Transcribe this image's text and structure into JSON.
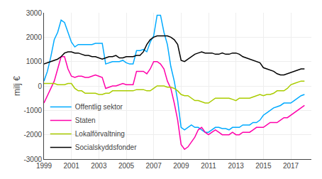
{
  "chart_data": {
    "type": "line",
    "ylabel": "milj €",
    "x": [
      1999.0,
      1999.25,
      1999.5,
      1999.75,
      2000.0,
      2000.25,
      2000.5,
      2000.75,
      2001.0,
      2001.25,
      2001.5,
      2001.75,
      2002.0,
      2002.25,
      2002.5,
      2002.75,
      2003.0,
      2003.25,
      2003.5,
      2003.75,
      2004.0,
      2004.25,
      2004.5,
      2004.75,
      2005.0,
      2005.25,
      2005.5,
      2005.75,
      2006.0,
      2006.25,
      2006.5,
      2006.75,
      2007.0,
      2007.25,
      2007.5,
      2007.75,
      2008.0,
      2008.25,
      2008.5,
      2008.75,
      2009.0,
      2009.25,
      2009.5,
      2009.75,
      2010.0,
      2010.25,
      2010.5,
      2010.75,
      2011.0,
      2011.25,
      2011.5,
      2011.75,
      2012.0,
      2012.25,
      2012.5,
      2012.75,
      2013.0,
      2013.25,
      2013.5,
      2013.75,
      2014.0,
      2014.25,
      2014.5,
      2014.75,
      2015.0,
      2015.25,
      2015.5,
      2015.75,
      2016.0,
      2016.25,
      2016.5,
      2016.75,
      2017.0,
      2017.25,
      2017.5,
      2017.75,
      2018.0
    ],
    "series": [
      {
        "name": "Offentlig sektor",
        "color": "#00aaff",
        "values": [
          200,
          600,
          1200,
          1900,
          2200,
          2700,
          2600,
          2200,
          1800,
          1600,
          1700,
          1700,
          1700,
          1700,
          1700,
          1750,
          1750,
          1750,
          900,
          950,
          1000,
          1000,
          1000,
          1050,
          950,
          900,
          900,
          1450,
          1450,
          1500,
          1400,
          1800,
          2050,
          2900,
          2900,
          2200,
          1700,
          800,
          200,
          -600,
          -1700,
          -1800,
          -1700,
          -1600,
          -1700,
          -1700,
          -1800,
          -1900,
          -1900,
          -1800,
          -1700,
          -1700,
          -1750,
          -1750,
          -1800,
          -1700,
          -1700,
          -1700,
          -1600,
          -1600,
          -1600,
          -1500,
          -1500,
          -1400,
          -1200,
          -1100,
          -1000,
          -900,
          -850,
          -800,
          -700,
          -700,
          -700,
          -600,
          -500,
          -400,
          -350
        ]
      },
      {
        "name": "Staten",
        "color": "#ff00aa",
        "values": [
          -700,
          -400,
          -100,
          200,
          700,
          1200,
          1200,
          700,
          400,
          350,
          400,
          400,
          350,
          350,
          400,
          450,
          400,
          350,
          -100,
          -50,
          0,
          0,
          50,
          100,
          50,
          50,
          50,
          600,
          600,
          600,
          500,
          700,
          1000,
          1000,
          900,
          700,
          200,
          -100,
          -700,
          -1400,
          -2400,
          -2600,
          -2500,
          -2300,
          -2100,
          -1800,
          -1700,
          -1900,
          -2000,
          -1900,
          -1800,
          -1900,
          -2000,
          -2000,
          -2000,
          -1900,
          -2000,
          -2000,
          -1900,
          -1900,
          -1900,
          -1800,
          -1700,
          -1700,
          -1700,
          -1600,
          -1500,
          -1500,
          -1500,
          -1400,
          -1300,
          -1300,
          -1200,
          -1100,
          -1000,
          -900,
          -800
        ]
      },
      {
        "name": "Lokalförvaltning",
        "color": "#aacc00",
        "values": [
          100,
          100,
          100,
          100,
          50,
          50,
          50,
          100,
          100,
          -100,
          -200,
          -200,
          -300,
          -300,
          -300,
          -300,
          -350,
          -350,
          -300,
          -300,
          -200,
          -200,
          -200,
          -200,
          -200,
          -200,
          -200,
          -150,
          -150,
          -150,
          -200,
          -200,
          -100,
          0,
          0,
          0,
          -50,
          -50,
          -100,
          -200,
          -350,
          -400,
          -400,
          -500,
          -600,
          -600,
          -650,
          -700,
          -700,
          -600,
          -500,
          -500,
          -500,
          -500,
          -500,
          -550,
          -600,
          -500,
          -500,
          -500,
          -500,
          -450,
          -400,
          -350,
          -400,
          -350,
          -350,
          -300,
          -200,
          -200,
          -200,
          -100,
          50,
          100,
          150,
          200,
          200
        ]
      },
      {
        "name": "Socialskyddsfonder",
        "color": "#000000",
        "values": [
          900,
          950,
          1000,
          1050,
          1100,
          1200,
          1350,
          1400,
          1400,
          1350,
          1350,
          1300,
          1250,
          1250,
          1200,
          1200,
          1150,
          1100,
          1150,
          1200,
          1200,
          1250,
          1150,
          1150,
          1200,
          1200,
          1200,
          1250,
          1250,
          1400,
          1700,
          1900,
          2000,
          2050,
          2050,
          2050,
          2050,
          2000,
          1900,
          1700,
          1050,
          1000,
          1100,
          1200,
          1300,
          1350,
          1400,
          1350,
          1350,
          1350,
          1300,
          1300,
          1350,
          1300,
          1300,
          1350,
          1350,
          1300,
          1200,
          1150,
          1100,
          1050,
          1000,
          950,
          750,
          700,
          650,
          600,
          500,
          450,
          450,
          500,
          550,
          600,
          650,
          700,
          700
        ]
      }
    ],
    "xlim": [
      1999,
      2018.5
    ],
    "xticks": [
      1999,
      2001,
      2003,
      2005,
      2007,
      2009,
      2011,
      2013,
      2015,
      2017
    ],
    "ylim": [
      -3000,
      3000
    ],
    "yticks": [
      -3000,
      -2000,
      -1000,
      0,
      1000,
      2000,
      3000
    ],
    "grid": true,
    "legend": "lower left"
  }
}
